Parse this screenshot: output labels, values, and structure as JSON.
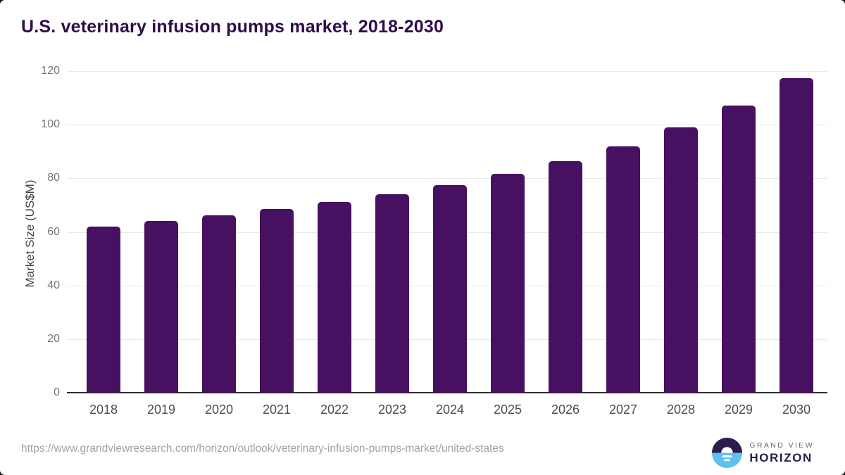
{
  "header": {
    "title": "U.S. veterinary infusion pumps market, 2018-2030"
  },
  "chart_data": {
    "type": "bar",
    "title": "U.S. veterinary infusion pumps market, 2018-2030",
    "categories": [
      "2018",
      "2019",
      "2020",
      "2021",
      "2022",
      "2023",
      "2024",
      "2025",
      "2026",
      "2027",
      "2028",
      "2029",
      "2030"
    ],
    "values": [
      61.9,
      64.2,
      66.3,
      68.6,
      71.2,
      74.1,
      77.5,
      81.7,
      86.3,
      91.9,
      99.0,
      107.2,
      117.3
    ],
    "xlabel": "",
    "ylabel": "Market Size (US$M)",
    "ylim": [
      0,
      120
    ],
    "yticks": [
      0,
      20,
      40,
      60,
      80,
      100,
      120
    ],
    "grid": true,
    "legend": "none",
    "bar_color": "#481060",
    "gridline_color": "#e9e9e9",
    "axis_line_color": "#2e2e2e"
  },
  "footer": {
    "source_url": "https://www.grandviewresearch.com/horizon/outlook/veterinary-infusion-pumps-market/united-states",
    "logo": {
      "line1": "GRAND VIEW",
      "line2": "HORIZON",
      "icon_top_color": "#2d1b4e",
      "icon_bottom_color": "#5ec1ee"
    }
  }
}
